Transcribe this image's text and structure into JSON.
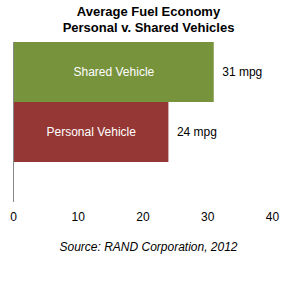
{
  "chart_data": {
    "type": "bar",
    "title": "Average Fuel Economy",
    "subtitle": "Personal v. Shared Vehicles",
    "caption": "Source: RAND Corporation, 2012",
    "orientation": "horizontal",
    "categories": [
      "Shared Vehicle",
      "Personal Vehicle"
    ],
    "values": [
      31,
      24
    ],
    "value_labels": [
      "31 mpg",
      "24 mpg"
    ],
    "data_labels": true,
    "colors": [
      "#77933c",
      "#953735"
    ],
    "xlim": [
      0,
      40
    ],
    "xticks": [
      0,
      10,
      20,
      30,
      40
    ],
    "grid": false,
    "tick_labels": "x"
  }
}
